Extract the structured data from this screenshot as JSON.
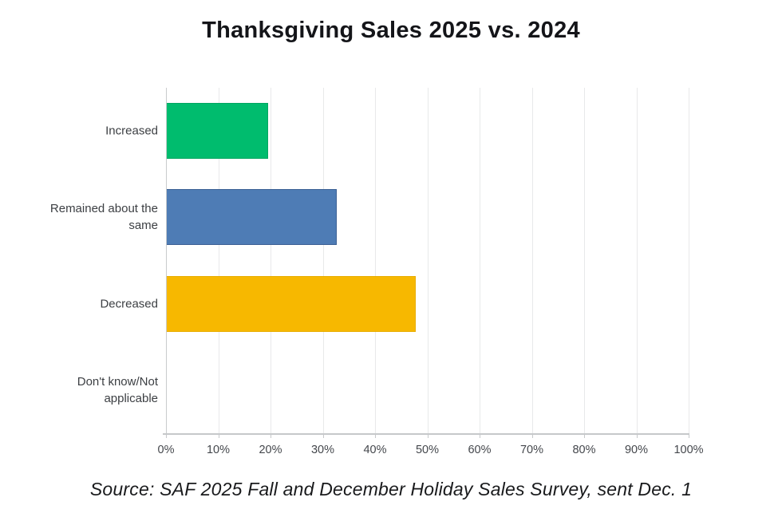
{
  "title": "Thanksgiving Sales 2025 vs. 2024",
  "source_note": "Source: SAF 2025 Fall and December Holiday Sales Survey, sent Dec. 1",
  "chart_data": {
    "type": "bar",
    "orientation": "horizontal",
    "title": "Thanksgiving Sales 2025 vs. 2024",
    "categories": [
      "Increased",
      "Remained about the same",
      "Decreased",
      "Don't know/Not applicable"
    ],
    "values": [
      19.6,
      32.6,
      47.8,
      0
    ],
    "bar_colors": [
      "#00bc6e",
      "#4e7cb5",
      "#f7b800",
      null
    ],
    "bar_border_colors": [
      "#00a661",
      "#3a5f94",
      "#e8ad00",
      null
    ],
    "xlabel": "",
    "ylabel": "",
    "xlim": [
      0,
      100
    ],
    "x_tick_values": [
      0,
      10,
      20,
      30,
      40,
      50,
      60,
      70,
      80,
      90,
      100
    ],
    "x_tick_labels": [
      "0%",
      "10%",
      "20%",
      "30%",
      "40%",
      "50%",
      "60%",
      "70%",
      "80%",
      "90%",
      "100%"
    ],
    "grid": true,
    "legend": false,
    "annotation": "Source: SAF 2025 Fall and December Holiday Sales Survey, sent Dec. 1"
  },
  "colors": {
    "increased_green": "#00bc6e",
    "remained_blue": "#4e7cb5",
    "decreased_yellow": "#f7b800",
    "gridline_gray": "#e8e9ea",
    "axis_gray": "#c6c8ca",
    "text_dark": "#141519"
  }
}
